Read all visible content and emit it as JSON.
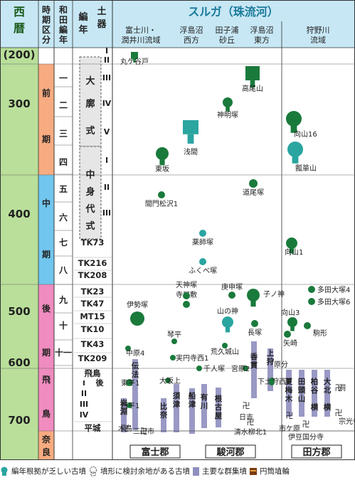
{
  "header": {
    "seireki": "西暦",
    "jiki": "時期区分",
    "wada": "和田編年",
    "doki": "土器編年",
    "river": "スルガ（珠流河）",
    "regions": [
      "富士川・潤井川流域",
      "浮島沼西方",
      "田子浦砂丘",
      "浮島沼東方",
      "狩野川流域"
    ]
  },
  "years": [
    "(200)",
    "300",
    "400",
    "500",
    "600",
    "700"
  ],
  "periods": [
    "前期",
    "中期",
    "後期",
    "飛鳥",
    "奈良"
  ],
  "wada_phases": [
    "一",
    "二",
    "三",
    "四",
    "五",
    "六",
    "七",
    "八",
    "九",
    "十",
    "十一"
  ],
  "doki_phases": [
    "I",
    "II",
    "III",
    "IV",
    "V",
    "I",
    "II",
    "III",
    "TK73",
    "TK216",
    "TK208",
    "TK23",
    "TK47",
    "MT15",
    "TK10",
    "TK43",
    "TK209",
    "飛鳥I 後",
    "II",
    "III",
    "IV",
    "平城"
  ],
  "doki_groups": [
    "大廓式",
    "中身代式"
  ],
  "tombs": [
    "丸ケ谷戸",
    "高尾山",
    "神明塚",
    "浅間",
    "東坂",
    "向山16",
    "瓢箪山",
    "道尾塚",
    "間門松沢1",
    "薬師塚",
    "ふくべ塚",
    "向山1",
    "伊勢塚",
    "寺屋敷",
    "天神塚",
    "庚申塚",
    "山の神",
    "子ノ神",
    "長塚",
    "向山3",
    "多田大塚4",
    "多田大塚6",
    "駒形",
    "矢崎",
    "琴平",
    "荒久城山",
    "実円寺西1",
    "中原4",
    "東平1",
    "西平1",
    "大坂上",
    "千人塚",
    "宮原2",
    "下土狩西1",
    "原分",
    "日吉",
    "清水柳北1",
    "三日市",
    "木島",
    "洞",
    "宗光寺",
    "市ケ原",
    "伊豆国分寺"
  ],
  "groups": [
    "伝法",
    "岩淵",
    "比奈",
    "富士岡",
    "須津",
    "中里",
    "船津",
    "有川",
    "根古屋",
    "香貫",
    "上狩野",
    "夏梅木",
    "田頭山",
    "柏谷",
    "大北",
    "横穴"
  ],
  "districts": [
    "富士郡",
    "駿河郡",
    "田方郡"
  ],
  "legend": [
    "編年根拠が乏しい古墳",
    "墳形に検討余地がある古墳",
    "主要な群集墳",
    "円筒埴輪"
  ],
  "colors": {
    "green": "#1a7a3c",
    "teal": "#2aa5a0",
    "purple": "#8f8fbf",
    "brown": "#7a3a10",
    "header": "#c7e7f4",
    "seireki": "#b9df9a",
    "zenki": "#f7ab80",
    "chuki": "#70c6ee",
    "koki": "#f08cbf",
    "asuka": "#f08cbf",
    "nara": "#f7ab80"
  }
}
